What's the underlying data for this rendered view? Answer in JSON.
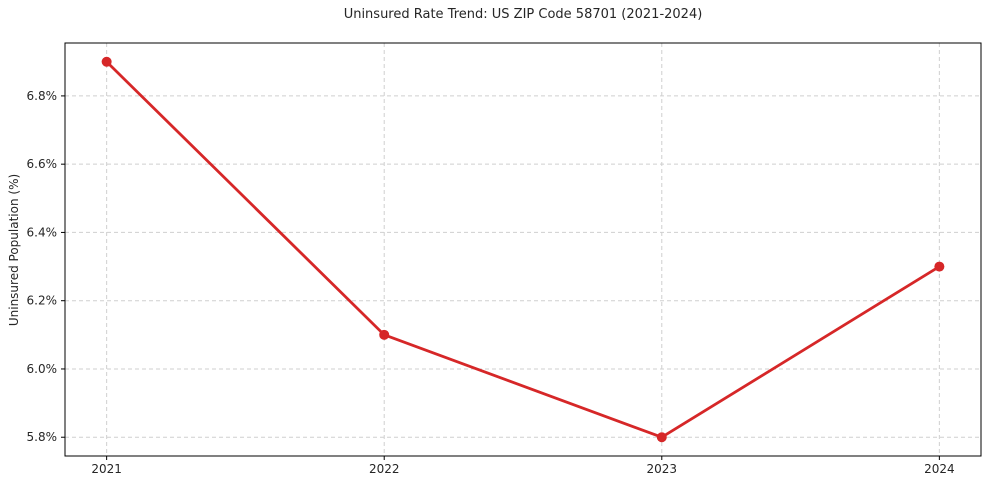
{
  "chart_data": {
    "type": "line",
    "title": "Uninsured Rate Trend: US ZIP Code 58701 (2021-2024)",
    "xlabel": "",
    "ylabel": "Uninsured Population (%)",
    "x": [
      2021,
      2022,
      2023,
      2024
    ],
    "series": [
      {
        "values": [
          6.9,
          6.1,
          5.8,
          6.3
        ],
        "color": "#d62728",
        "marker": "circle"
      }
    ],
    "xticks": {
      "values": [
        2021,
        2022,
        2023,
        2024
      ],
      "labels": [
        "2021",
        "2022",
        "2023",
        "2024"
      ]
    },
    "yticks": {
      "values": [
        5.8,
        6.0,
        6.2,
        6.4,
        6.6,
        6.8
      ],
      "labels": [
        "5.8%",
        "6.0%",
        "6.2%",
        "6.4%",
        "6.6%",
        "6.8%"
      ]
    },
    "xlim": [
      2020.85,
      2024.15
    ],
    "ylim": [
      5.745,
      6.955
    ],
    "grid": true,
    "grid_style": "dashed",
    "legend_position": "none",
    "colors": {
      "line": "#d62728",
      "grid": "#cfcfcf",
      "spine": "#000000",
      "tick_label": "#262626",
      "background": "#ffffff"
    }
  }
}
